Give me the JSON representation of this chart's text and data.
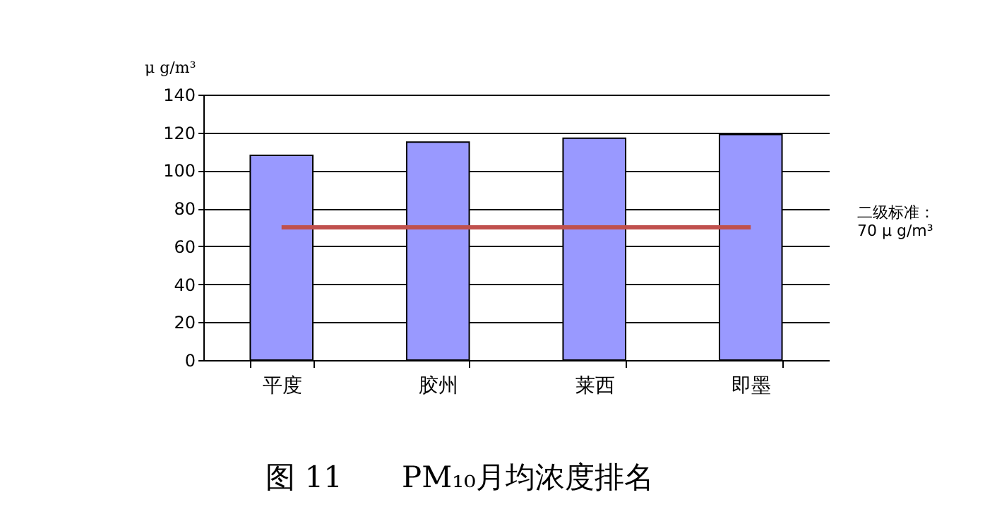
{
  "chart_data": {
    "type": "bar",
    "title": "图 11　　PM₁₀月均浓度排名",
    "ylabel": "μ g/m³",
    "categories": [
      "平度",
      "胶州",
      "莱西",
      "即墨"
    ],
    "values": [
      108,
      115,
      117,
      119
    ],
    "color": "#9999ff",
    "ylim": [
      0,
      140
    ],
    "yticks": [
      0,
      20,
      40,
      60,
      80,
      100,
      120,
      140
    ],
    "grid": "y",
    "annotations": [
      "二级标准：\n70 μ g/m³"
    ],
    "ref_lines": [
      {
        "axis": "y",
        "value": 70,
        "color": "#c0504d"
      }
    ]
  }
}
